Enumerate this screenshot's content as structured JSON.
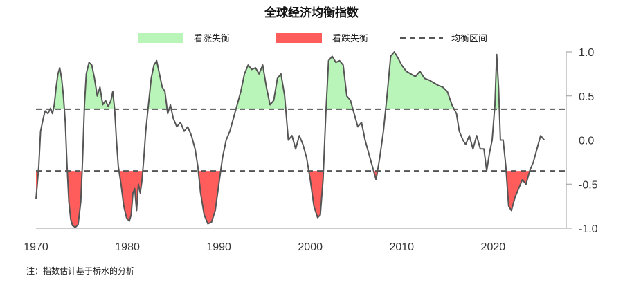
{
  "chart_data": {
    "type": "area",
    "title": "全球经济均衡指数",
    "xlabel": "",
    "ylabel": "",
    "xlim": [
      1970,
      2028
    ],
    "ylim": [
      -1.0,
      1.0
    ],
    "x_ticks": [
      "1970",
      "1980",
      "1990",
      "2000",
      "2010",
      "2020"
    ],
    "y_ticks": [
      "1.0",
      "0.5",
      "0.0",
      "-0.5",
      "-1.0"
    ],
    "thresholds": {
      "upper": 0.35,
      "lower": -0.35
    },
    "grid": false,
    "legend_position": "top",
    "legend": [
      {
        "label": "看涨失衡",
        "kind": "fill",
        "color": "#b9f5b9"
      },
      {
        "label": "看跌失衡",
        "kind": "fill",
        "color": "#ff5c5c"
      },
      {
        "label": "均衡区间",
        "kind": "dashed-line",
        "color": "#555555"
      }
    ],
    "colors": {
      "line": "#555555",
      "bullish": "#b9f5b9",
      "bearish": "#ff5c5c",
      "zero_line": "#bbbbbb",
      "axis": "#999999"
    },
    "series": [
      {
        "values": [
          [
            1970.0,
            -0.67
          ],
          [
            1970.3,
            -0.3
          ],
          [
            1970.5,
            0.1
          ],
          [
            1970.8,
            0.25
          ],
          [
            1971.0,
            0.33
          ],
          [
            1971.3,
            0.3
          ],
          [
            1971.6,
            0.36
          ],
          [
            1971.8,
            0.3
          ],
          [
            1972.0,
            0.4
          ],
          [
            1972.2,
            0.6
          ],
          [
            1972.4,
            0.75
          ],
          [
            1972.6,
            0.82
          ],
          [
            1972.8,
            0.7
          ],
          [
            1973.0,
            0.5
          ],
          [
            1973.2,
            0.2
          ],
          [
            1973.4,
            -0.3
          ],
          [
            1973.6,
            -0.7
          ],
          [
            1973.8,
            -0.9
          ],
          [
            1974.0,
            -0.97
          ],
          [
            1974.3,
            -0.99
          ],
          [
            1974.6,
            -0.96
          ],
          [
            1974.9,
            -0.7
          ],
          [
            1975.1,
            -0.2
          ],
          [
            1975.3,
            0.4
          ],
          [
            1975.5,
            0.75
          ],
          [
            1975.8,
            0.88
          ],
          [
            1976.1,
            0.85
          ],
          [
            1976.4,
            0.7
          ],
          [
            1976.7,
            0.5
          ],
          [
            1977.0,
            0.6
          ],
          [
            1977.3,
            0.4
          ],
          [
            1977.6,
            0.45
          ],
          [
            1977.9,
            0.38
          ],
          [
            1978.2,
            0.45
          ],
          [
            1978.4,
            0.55
          ],
          [
            1978.6,
            0.35
          ],
          [
            1978.8,
            0.0
          ],
          [
            1979.0,
            -0.3
          ],
          [
            1979.3,
            -0.5
          ],
          [
            1979.6,
            -0.75
          ],
          [
            1979.9,
            -0.88
          ],
          [
            1980.2,
            -0.92
          ],
          [
            1980.4,
            -0.85
          ],
          [
            1980.6,
            -0.6
          ],
          [
            1980.8,
            -0.55
          ],
          [
            1981.0,
            -0.8
          ],
          [
            1981.2,
            -0.5
          ],
          [
            1981.4,
            -0.6
          ],
          [
            1981.6,
            -0.45
          ],
          [
            1981.8,
            -0.2
          ],
          [
            1982.0,
            0.1
          ],
          [
            1982.3,
            0.4
          ],
          [
            1982.6,
            0.7
          ],
          [
            1982.9,
            0.85
          ],
          [
            1983.2,
            0.9
          ],
          [
            1983.5,
            0.75
          ],
          [
            1983.8,
            0.6
          ],
          [
            1984.1,
            0.55
          ],
          [
            1984.4,
            0.3
          ],
          [
            1984.7,
            0.4
          ],
          [
            1985.0,
            0.25
          ],
          [
            1985.4,
            0.15
          ],
          [
            1985.8,
            0.2
          ],
          [
            1986.2,
            0.1
          ],
          [
            1986.6,
            0.15
          ],
          [
            1987.0,
            0.05
          ],
          [
            1987.4,
            -0.1
          ],
          [
            1987.7,
            -0.3
          ],
          [
            1988.0,
            -0.6
          ],
          [
            1988.4,
            -0.85
          ],
          [
            1988.8,
            -0.95
          ],
          [
            1989.2,
            -0.93
          ],
          [
            1989.6,
            -0.8
          ],
          [
            1990.0,
            -0.5
          ],
          [
            1990.4,
            -0.2
          ],
          [
            1990.8,
            0.0
          ],
          [
            1991.2,
            0.1
          ],
          [
            1991.6,
            0.25
          ],
          [
            1992.0,
            0.4
          ],
          [
            1992.4,
            0.55
          ],
          [
            1992.8,
            0.75
          ],
          [
            1993.2,
            0.85
          ],
          [
            1993.6,
            0.8
          ],
          [
            1994.0,
            0.82
          ],
          [
            1994.4,
            0.75
          ],
          [
            1994.8,
            0.85
          ],
          [
            1995.2,
            0.6
          ],
          [
            1995.6,
            0.4
          ],
          [
            1996.0,
            0.45
          ],
          [
            1996.4,
            0.7
          ],
          [
            1996.8,
            0.75
          ],
          [
            1997.2,
            0.5
          ],
          [
            1997.6,
            0.0
          ],
          [
            1998.0,
            0.05
          ],
          [
            1998.4,
            -0.1
          ],
          [
            1998.8,
            0.05
          ],
          [
            1999.2,
            -0.05
          ],
          [
            1999.6,
            -0.2
          ],
          [
            2000.0,
            -0.45
          ],
          [
            2000.4,
            -0.75
          ],
          [
            2000.8,
            -0.88
          ],
          [
            2001.1,
            -0.85
          ],
          [
            2001.4,
            -0.45
          ],
          [
            2001.7,
            0.3
          ],
          [
            2002.0,
            0.9
          ],
          [
            2002.4,
            0.95
          ],
          [
            2002.8,
            0.88
          ],
          [
            2003.2,
            0.9
          ],
          [
            2003.6,
            0.85
          ],
          [
            2004.0,
            0.5
          ],
          [
            2004.4,
            0.45
          ],
          [
            2004.8,
            0.3
          ],
          [
            2005.2,
            0.15
          ],
          [
            2005.6,
            0.2
          ],
          [
            2006.0,
            0.0
          ],
          [
            2006.4,
            -0.15
          ],
          [
            2006.8,
            -0.3
          ],
          [
            2007.2,
            -0.45
          ],
          [
            2007.6,
            -0.2
          ],
          [
            2008.0,
            0.1
          ],
          [
            2008.4,
            0.5
          ],
          [
            2008.8,
            0.95
          ],
          [
            2009.2,
            1.0
          ],
          [
            2009.6,
            0.93
          ],
          [
            2010.0,
            0.85
          ],
          [
            2010.5,
            0.78
          ],
          [
            2011.0,
            0.75
          ],
          [
            2011.5,
            0.72
          ],
          [
            2012.0,
            0.78
          ],
          [
            2012.5,
            0.7
          ],
          [
            2013.0,
            0.68
          ],
          [
            2013.5,
            0.65
          ],
          [
            2014.0,
            0.62
          ],
          [
            2014.5,
            0.6
          ],
          [
            2015.0,
            0.55
          ],
          [
            2015.5,
            0.4
          ],
          [
            2016.0,
            0.3
          ],
          [
            2016.3,
            0.1
          ],
          [
            2016.7,
            0.0
          ],
          [
            2017.0,
            -0.05
          ],
          [
            2017.4,
            0.05
          ],
          [
            2017.8,
            -0.1
          ],
          [
            2018.2,
            0.05
          ],
          [
            2018.6,
            -0.1
          ],
          [
            2019.0,
            -0.1
          ],
          [
            2019.3,
            -0.35
          ],
          [
            2019.6,
            -0.15
          ],
          [
            2019.9,
            0.0
          ],
          [
            2020.2,
            0.4
          ],
          [
            2020.4,
            0.97
          ],
          [
            2020.6,
            0.6
          ],
          [
            2020.8,
            0.0
          ],
          [
            2021.1,
            0.0
          ],
          [
            2021.4,
            -0.3
          ],
          [
            2021.7,
            -0.75
          ],
          [
            2022.0,
            -0.8
          ],
          [
            2022.4,
            -0.65
          ],
          [
            2022.8,
            -0.55
          ],
          [
            2023.2,
            -0.45
          ],
          [
            2023.6,
            -0.5
          ],
          [
            2024.0,
            -0.35
          ],
          [
            2024.4,
            -0.25
          ],
          [
            2024.8,
            -0.1
          ],
          [
            2025.2,
            0.05
          ],
          [
            2025.6,
            0.0
          ]
        ]
      }
    ]
  },
  "footnote": "注：指数估计基于桥水的分析"
}
